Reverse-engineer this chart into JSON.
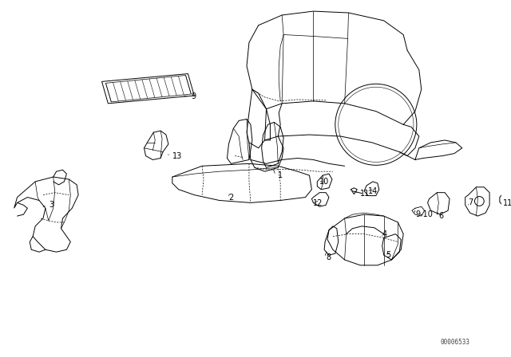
{
  "background_color": "#ffffff",
  "line_color": "#000000",
  "label_color": "#000000",
  "diagram_id": "00006533",
  "fig_width": 6.4,
  "fig_height": 4.48,
  "dpi": 100
}
